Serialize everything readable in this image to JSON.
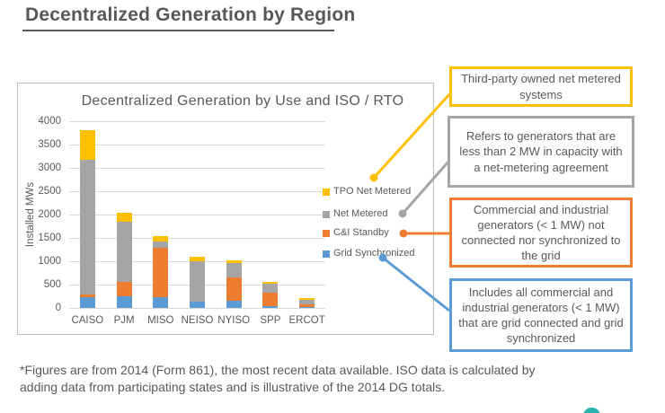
{
  "page": {
    "title": "Decentralized Generation by Region",
    "footnote_line1": "*Figures are from 2014 (Form 861), the most recent data available.  ISO data is calculated by",
    "footnote_line2": "adding data from participating states and is illustrative of the 2014 DG totals."
  },
  "chart_data": {
    "type": "bar",
    "stacked": true,
    "title": "Decentralized Generation by Use and ISO / RTO",
    "xlabel": "",
    "ylabel": "Installed MWs",
    "ylim": [
      0,
      4000
    ],
    "ytick_step": 500,
    "grid": true,
    "legend_position": "right-inside",
    "categories": [
      "CAISO",
      "PJM",
      "MISO",
      "NEISO",
      "NYISO",
      "SPP",
      "ERCOT"
    ],
    "series": [
      {
        "name": "Grid Synchronized",
        "color": "#5b9bd5",
        "values": [
          230,
          250,
          230,
          130,
          160,
          30,
          20
        ]
      },
      {
        "name": "C&I Standby",
        "color": "#ed7d31",
        "values": [
          50,
          300,
          1050,
          0,
          500,
          300,
          60
        ]
      },
      {
        "name": "Net Metered",
        "color": "#a5a5a5",
        "values": [
          2890,
          1290,
          150,
          870,
          300,
          185,
          90
        ]
      },
      {
        "name": "TPO Net Metered",
        "color": "#ffc000",
        "values": [
          630,
          190,
          100,
          90,
          65,
          40,
          35
        ]
      }
    ],
    "legend_order": [
      "TPO Net Metered",
      "Net Metered",
      "C&I Standby",
      "Grid Synchronized"
    ],
    "totals": {
      "CAISO": 3800,
      "PJM": 2030,
      "MISO": 1530,
      "NEISO": 1090,
      "NYISO": 1025,
      "SPP": 555,
      "ERCOT": 205
    }
  },
  "callouts": [
    {
      "id": "tpo",
      "color": "#ffc000",
      "text": "Third-party owned net metered systems"
    },
    {
      "id": "netmetered",
      "color": "#a5a5a5",
      "text": "Refers to generators that are less than 2 MW in capacity with a net-metering agreement"
    },
    {
      "id": "standby",
      "color": "#ed7d31",
      "text": "Commercial and industrial generators (< 1 MW) not connected nor synchronized to the grid"
    },
    {
      "id": "gridsync",
      "color": "#5b9bd5",
      "text": "Includes all commercial and industrial generators (< 1 MW) that are grid connected and grid synchronized"
    }
  ]
}
